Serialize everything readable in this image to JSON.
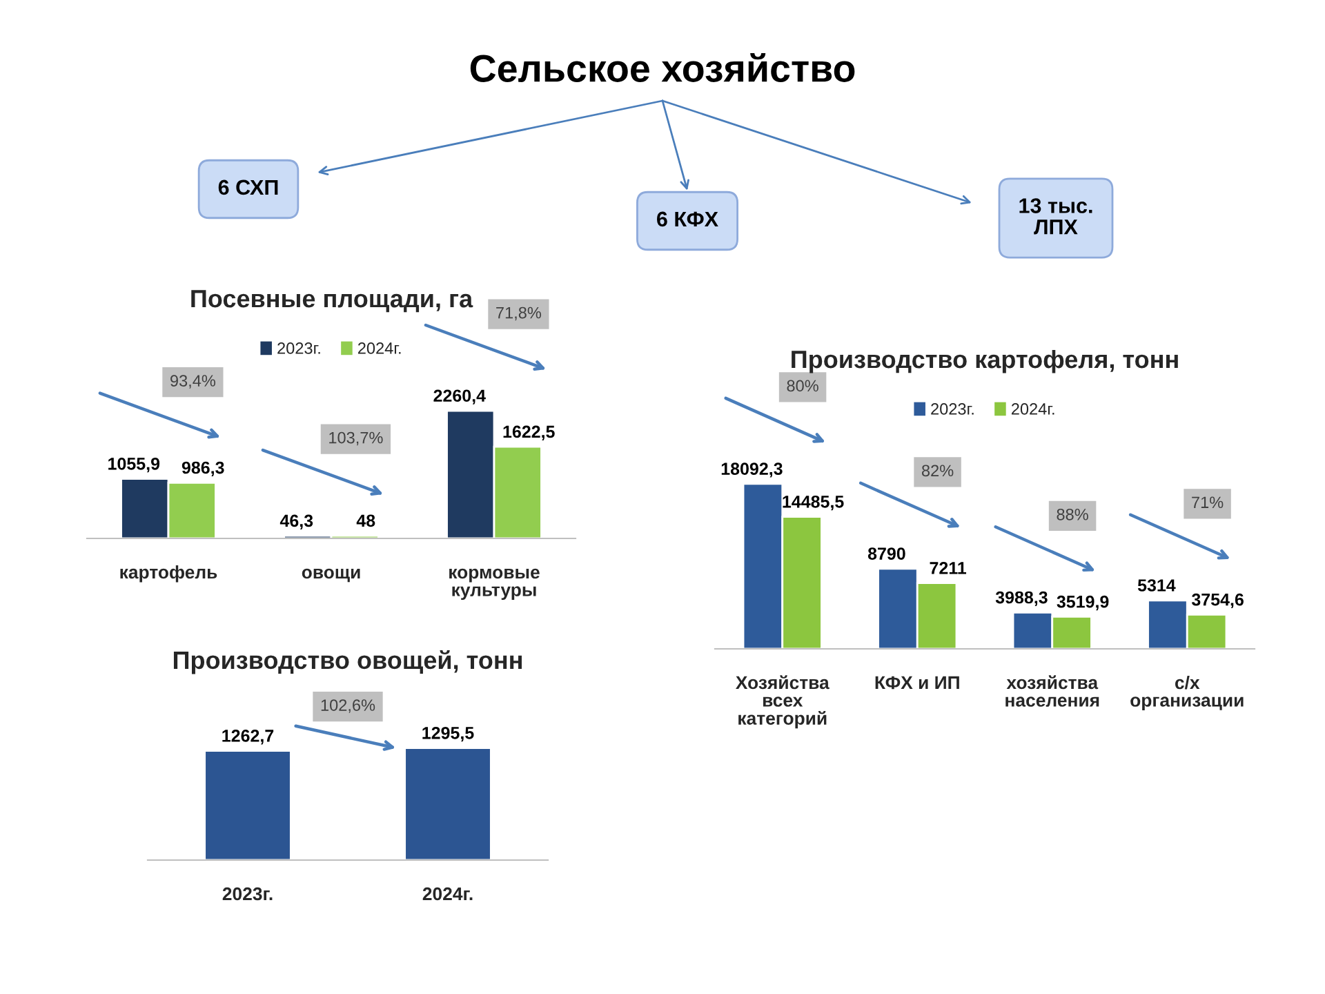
{
  "chart_data": [
    {
      "type": "other",
      "title": "Сельское хозяйство",
      "annotations": [
        "6 СХП",
        "6 КФХ",
        "13 тыс.\nЛПХ"
      ]
    },
    {
      "type": "bar",
      "title": "Посевные площади, га",
      "categories": [
        "картофель",
        "овощи",
        "кормовые\nкультуры"
      ],
      "series": [
        {
          "name": "2023г.",
          "color": "#1f3a60",
          "values": [
            1055.9,
            46.3,
            2260.4
          ],
          "value_labels": [
            "1055,9",
            "46,3",
            "2260,4"
          ]
        },
        {
          "name": "2024г.",
          "color": "#92cd4f",
          "values": [
            986.3,
            48,
            1622.5
          ],
          "value_labels": [
            "986,3",
            "48",
            "1622,5"
          ]
        }
      ],
      "tick_labels": "x",
      "legend": "top",
      "annotations": [
        "93,4%",
        "103,7%",
        "71,8%"
      ]
    },
    {
      "type": "bar",
      "title": "Производство картофеля, тонн",
      "categories": [
        "Хозяйства\nвсех\nкатегорий",
        "КФХ и ИП",
        "хозяйства\nнаселения",
        "с/х\nорганизации"
      ],
      "series": [
        {
          "name": "2023г.",
          "color": "#2e5b9a",
          "values": [
            18092.3,
            8790,
            3988.3,
            5314
          ],
          "value_labels": [
            "18092,3",
            "8790",
            "3988,3",
            "5314"
          ]
        },
        {
          "name": "2024г.",
          "color": "#8cc63f",
          "values": [
            14485.5,
            7211,
            3519.9,
            3754.6
          ],
          "value_labels": [
            "14485,5",
            "7211",
            "3519,9",
            "3754,6"
          ]
        }
      ],
      "tick_labels": "x",
      "legend": "top",
      "annotations": [
        "80%",
        "82%",
        "88%",
        "71%"
      ]
    },
    {
      "type": "bar",
      "title": "Производство овощей, тонн",
      "categories": [
        "2023г.",
        "2024г."
      ],
      "series": [
        {
          "color": "#2c5592",
          "values": [
            1262.7,
            1295.5
          ],
          "value_labels": [
            "1262,7",
            "1295,5"
          ]
        }
      ],
      "tick_labels": "x",
      "annotations": [
        "102,6%"
      ]
    }
  ]
}
